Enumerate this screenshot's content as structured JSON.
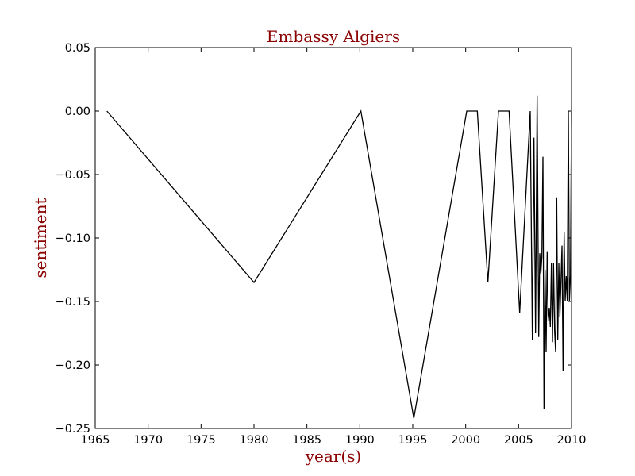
{
  "chart_data": {
    "type": "line",
    "title": "Embassy Algiers",
    "xlabel": "year(s)",
    "ylabel": "sentiment",
    "xlim": [
      1965,
      2010
    ],
    "ylim": [
      -0.25,
      0.05
    ],
    "grid": false,
    "colors": {
      "line": "#000000",
      "title": "#8b0000",
      "axis_labels": "#8b0000"
    },
    "x_ticks": [
      {
        "value": 1965,
        "label": "1965"
      },
      {
        "value": 1970,
        "label": "1970"
      },
      {
        "value": 1975,
        "label": "1975"
      },
      {
        "value": 1980,
        "label": "1980"
      },
      {
        "value": 1985,
        "label": "1985"
      },
      {
        "value": 1990,
        "label": "1990"
      },
      {
        "value": 1995,
        "label": "1995"
      },
      {
        "value": 2000,
        "label": "2000"
      },
      {
        "value": 2005,
        "label": "2005"
      },
      {
        "value": 2010,
        "label": "2010"
      }
    ],
    "y_ticks": [
      {
        "value": 0.05,
        "label": "0.05"
      },
      {
        "value": 0.0,
        "label": "0.00"
      },
      {
        "value": -0.05,
        "label": "−0.05"
      },
      {
        "value": -0.1,
        "label": "−0.10"
      },
      {
        "value": -0.15,
        "label": "−0.15"
      },
      {
        "value": -0.2,
        "label": "−0.20"
      },
      {
        "value": -0.25,
        "label": "−0.25"
      }
    ],
    "series": [
      {
        "x": [
          1966.1,
          1980.0,
          1990.1,
          1995.1,
          2000.1,
          2001.1,
          2002.1,
          2003.1,
          2004.1,
          2005.1,
          2006.1,
          2006.3,
          2006.45,
          2006.6,
          2006.75,
          2006.9,
          2007.0,
          2007.1,
          2007.2,
          2007.3,
          2007.4,
          2007.5,
          2007.6,
          2007.7,
          2007.8,
          2007.9,
          2008.0,
          2008.1,
          2008.2,
          2008.3,
          2008.4,
          2008.5,
          2008.6,
          2008.7,
          2008.8,
          2008.9,
          2009.0,
          2009.1,
          2009.2,
          2009.3,
          2009.4,
          2009.5,
          2009.6,
          2009.7,
          2009.8,
          2009.9,
          2010.0
        ],
        "y": [
          0.0,
          -0.135,
          0.0,
          -0.242,
          0.0,
          0.0,
          -0.135,
          0.0,
          0.0,
          -0.159,
          0.0,
          -0.18,
          -0.021,
          -0.175,
          0.012,
          -0.178,
          -0.112,
          -0.128,
          -0.115,
          -0.036,
          -0.235,
          -0.125,
          -0.19,
          -0.111,
          -0.165,
          -0.155,
          -0.17,
          -0.12,
          -0.182,
          -0.12,
          -0.173,
          -0.19,
          -0.068,
          -0.18,
          -0.12,
          -0.162,
          -0.135,
          -0.106,
          -0.205,
          -0.095,
          -0.15,
          -0.13,
          -0.15,
          0.0,
          -0.15,
          -0.13,
          0.0
        ]
      }
    ]
  }
}
